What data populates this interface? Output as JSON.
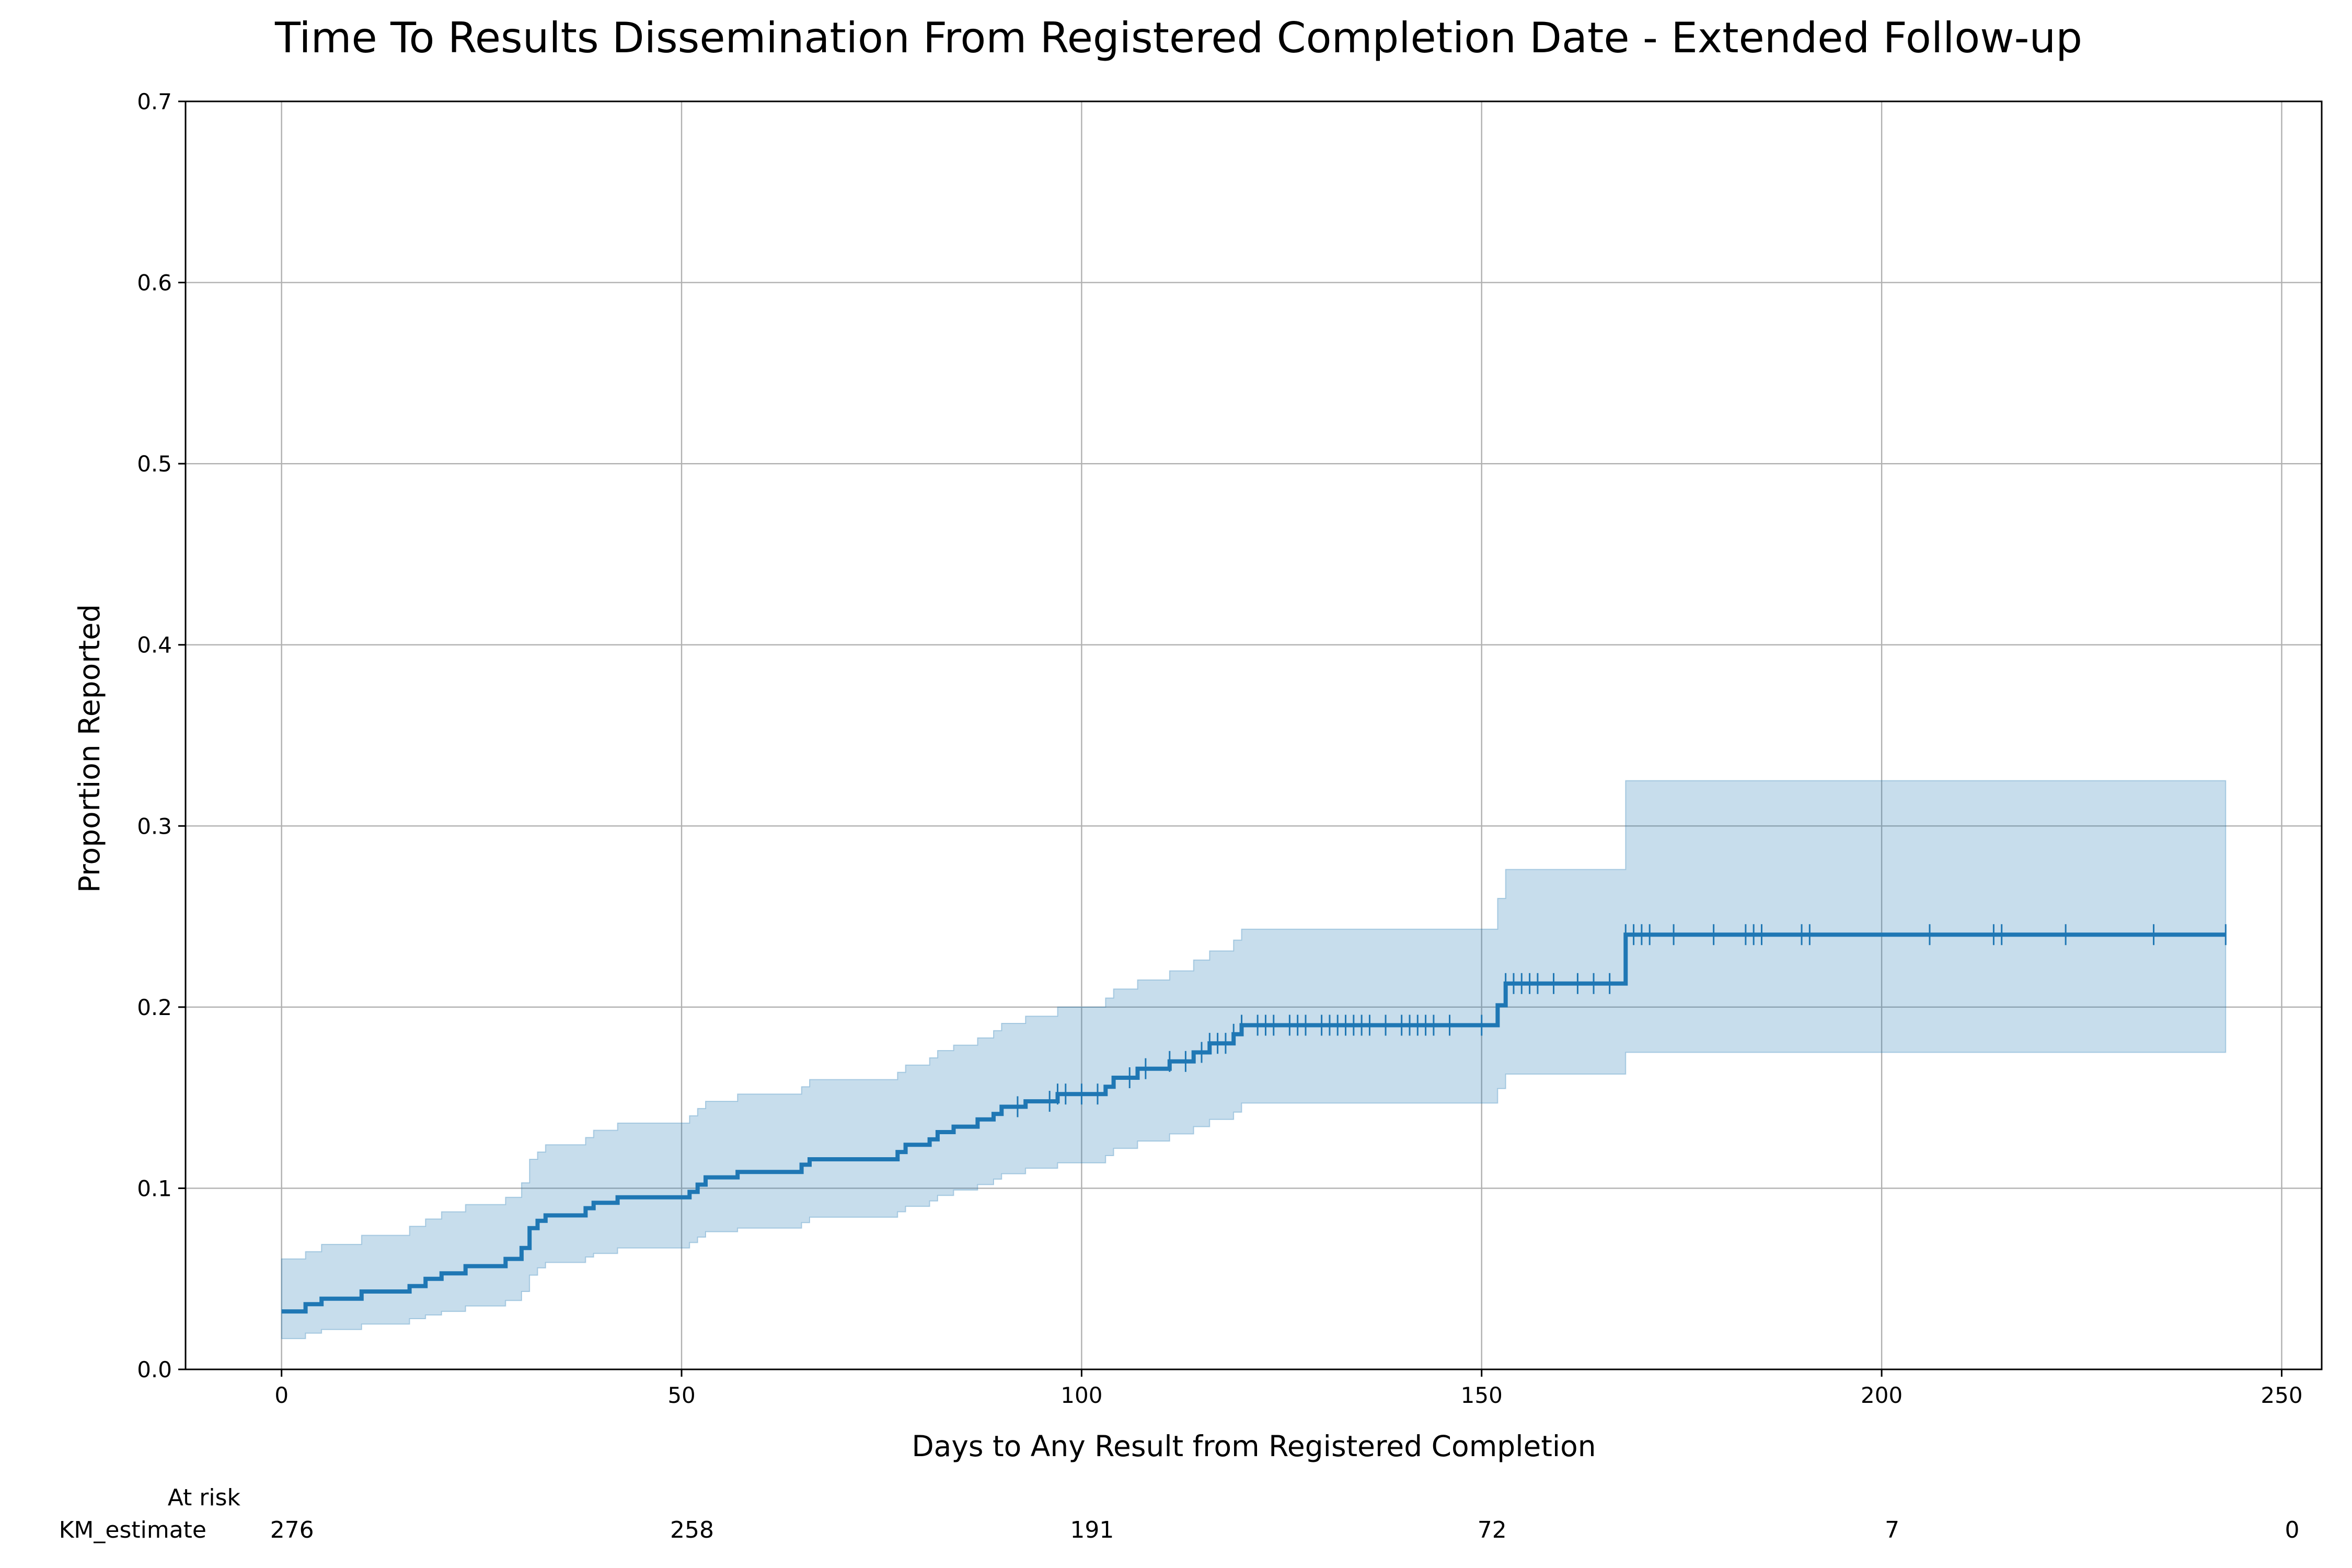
{
  "chart_data": {
    "type": "line",
    "title": "Time To Results Dissemination From Registered Completion Date - Extended Follow-up",
    "xlabel": "Days to Any Result from Registered Completion",
    "ylabel": "Proportion Reported",
    "xlim": [
      -12,
      255
    ],
    "ylim": [
      0,
      0.7
    ],
    "xticks": [
      0,
      50,
      100,
      150,
      200,
      250
    ],
    "xtick_labels": [
      "0",
      "50",
      "100",
      "150",
      "200",
      "250"
    ],
    "yticks": [
      0.0,
      0.1,
      0.2,
      0.3,
      0.4,
      0.5,
      0.6,
      0.7
    ],
    "ytick_labels": [
      "0.0",
      "0.1",
      "0.2",
      "0.3",
      "0.4",
      "0.5",
      "0.6",
      "0.7"
    ],
    "grid": true,
    "line_color": "#1f77b4",
    "ci_fill_color": "#1f77b4",
    "series": [
      {
        "name": "KM_estimate",
        "steps": [
          [
            0,
            0.032
          ],
          [
            3,
            0.036
          ],
          [
            5,
            0.039
          ],
          [
            10,
            0.043
          ],
          [
            16,
            0.046
          ],
          [
            18,
            0.05
          ],
          [
            20,
            0.053
          ],
          [
            23,
            0.057
          ],
          [
            28,
            0.061
          ],
          [
            30,
            0.067
          ],
          [
            31,
            0.078
          ],
          [
            32,
            0.082
          ],
          [
            33,
            0.085
          ],
          [
            38,
            0.089
          ],
          [
            39,
            0.092
          ],
          [
            42,
            0.095
          ],
          [
            51,
            0.098
          ],
          [
            52,
            0.102
          ],
          [
            53,
            0.106
          ],
          [
            57,
            0.109
          ],
          [
            65,
            0.113
          ],
          [
            66,
            0.116
          ],
          [
            77,
            0.12
          ],
          [
            78,
            0.124
          ],
          [
            81,
            0.127
          ],
          [
            82,
            0.131
          ],
          [
            84,
            0.134
          ],
          [
            87,
            0.138
          ],
          [
            89,
            0.141
          ],
          [
            90,
            0.145
          ],
          [
            93,
            0.148
          ],
          [
            97,
            0.152
          ],
          [
            103,
            0.156
          ],
          [
            104,
            0.161
          ],
          [
            107,
            0.166
          ],
          [
            111,
            0.17
          ],
          [
            114,
            0.175
          ],
          [
            116,
            0.18
          ],
          [
            119,
            0.185
          ],
          [
            120,
            0.19
          ],
          [
            152,
            0.201
          ],
          [
            153,
            0.213
          ],
          [
            168,
            0.24
          ],
          [
            243,
            0.24
          ]
        ],
        "ci_lower": [
          [
            0,
            0.017
          ],
          [
            3,
            0.02
          ],
          [
            5,
            0.022
          ],
          [
            10,
            0.025
          ],
          [
            16,
            0.028
          ],
          [
            18,
            0.03
          ],
          [
            20,
            0.032
          ],
          [
            23,
            0.035
          ],
          [
            28,
            0.038
          ],
          [
            30,
            0.043
          ],
          [
            31,
            0.052
          ],
          [
            32,
            0.056
          ],
          [
            33,
            0.059
          ],
          [
            38,
            0.062
          ],
          [
            39,
            0.064
          ],
          [
            42,
            0.067
          ],
          [
            51,
            0.07
          ],
          [
            52,
            0.073
          ],
          [
            53,
            0.076
          ],
          [
            57,
            0.078
          ],
          [
            65,
            0.081
          ],
          [
            66,
            0.084
          ],
          [
            77,
            0.087
          ],
          [
            78,
            0.09
          ],
          [
            81,
            0.093
          ],
          [
            82,
            0.096
          ],
          [
            84,
            0.099
          ],
          [
            87,
            0.102
          ],
          [
            89,
            0.105
          ],
          [
            90,
            0.108
          ],
          [
            93,
            0.111
          ],
          [
            97,
            0.114
          ],
          [
            103,
            0.118
          ],
          [
            104,
            0.122
          ],
          [
            107,
            0.126
          ],
          [
            111,
            0.13
          ],
          [
            114,
            0.134
          ],
          [
            116,
            0.138
          ],
          [
            119,
            0.142
          ],
          [
            120,
            0.147
          ],
          [
            152,
            0.155
          ],
          [
            153,
            0.163
          ],
          [
            168,
            0.175
          ],
          [
            243,
            0.175
          ]
        ],
        "ci_upper": [
          [
            0,
            0.061
          ],
          [
            3,
            0.065
          ],
          [
            5,
            0.069
          ],
          [
            10,
            0.074
          ],
          [
            16,
            0.079
          ],
          [
            18,
            0.083
          ],
          [
            20,
            0.087
          ],
          [
            23,
            0.091
          ],
          [
            28,
            0.095
          ],
          [
            30,
            0.103
          ],
          [
            31,
            0.116
          ],
          [
            32,
            0.12
          ],
          [
            33,
            0.124
          ],
          [
            38,
            0.128
          ],
          [
            39,
            0.132
          ],
          [
            42,
            0.136
          ],
          [
            51,
            0.14
          ],
          [
            52,
            0.144
          ],
          [
            53,
            0.148
          ],
          [
            57,
            0.152
          ],
          [
            65,
            0.156
          ],
          [
            66,
            0.16
          ],
          [
            77,
            0.164
          ],
          [
            78,
            0.168
          ],
          [
            81,
            0.172
          ],
          [
            82,
            0.176
          ],
          [
            84,
            0.179
          ],
          [
            87,
            0.183
          ],
          [
            89,
            0.187
          ],
          [
            90,
            0.191
          ],
          [
            93,
            0.195
          ],
          [
            97,
            0.2
          ],
          [
            103,
            0.205
          ],
          [
            104,
            0.21
          ],
          [
            107,
            0.215
          ],
          [
            111,
            0.22
          ],
          [
            114,
            0.226
          ],
          [
            116,
            0.231
          ],
          [
            119,
            0.237
          ],
          [
            120,
            0.243
          ],
          [
            152,
            0.26
          ],
          [
            153,
            0.276
          ],
          [
            168,
            0.325
          ],
          [
            243,
            0.325
          ]
        ],
        "censored_x": [
          92,
          96,
          97,
          98,
          100,
          102,
          106,
          108,
          111,
          113,
          115,
          116,
          117,
          118,
          119,
          120,
          122,
          123,
          124,
          126,
          127,
          128,
          130,
          131,
          132,
          133,
          134,
          135,
          136,
          138,
          140,
          141,
          142,
          143,
          144,
          146,
          150,
          153,
          154,
          155,
          156,
          157,
          159,
          162,
          164,
          166,
          168,
          169,
          170,
          171,
          174,
          179,
          183,
          184,
          185,
          190,
          191,
          206,
          214,
          215,
          223,
          234,
          243
        ]
      }
    ],
    "at_risk": {
      "header": "At risk",
      "row_label": "KM_estimate",
      "x": [
        0,
        50,
        100,
        150,
        200,
        250
      ],
      "counts": [
        "276",
        "258",
        "191",
        "72",
        "7",
        "0"
      ]
    }
  }
}
